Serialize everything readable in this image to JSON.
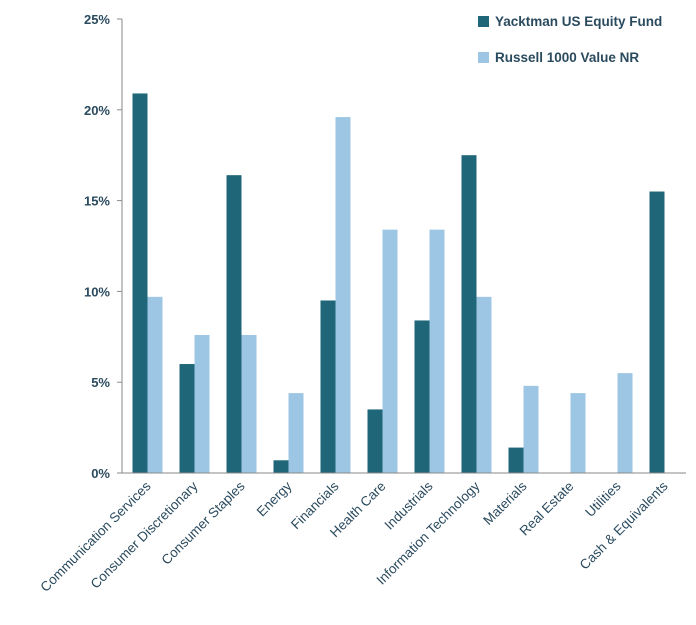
{
  "chart_data": {
    "type": "bar",
    "categories": [
      "Communication Services",
      "Consumer Discretionary",
      "Consumer Staples",
      "Energy",
      "Financials",
      "Health Care",
      "Industrials",
      "Information Technology",
      "Materials",
      "Real Estate",
      "Utilities",
      "Cash & Equivalents"
    ],
    "series": [
      {
        "name": "Yacktman US Equity Fund",
        "color": "#1f6678",
        "values": [
          20.9,
          6.0,
          16.4,
          0.7,
          9.5,
          3.5,
          8.4,
          17.5,
          1.4,
          0.0,
          0.0,
          15.5
        ]
      },
      {
        "name": "Russell 1000 Value NR",
        "color": "#9cc6e4",
        "values": [
          9.7,
          7.6,
          7.6,
          4.4,
          19.6,
          13.4,
          13.4,
          9.7,
          4.8,
          4.4,
          5.5,
          0.0
        ]
      }
    ],
    "ylim": [
      0,
      25
    ],
    "yticks": [
      0,
      5,
      10,
      15,
      20,
      25
    ],
    "ytick_labels": [
      "0%",
      "5%",
      "10%",
      "15%",
      "20%",
      "25%"
    ],
    "title": "",
    "xlabel": "",
    "ylabel": "",
    "legend_position": "top-right",
    "grid": false
  }
}
